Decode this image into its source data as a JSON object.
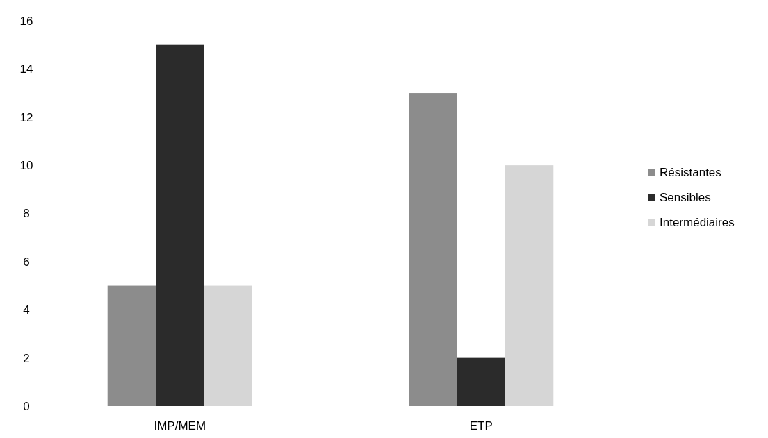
{
  "chart_data": {
    "type": "bar",
    "categories": [
      "IMP/MEM",
      "ETP"
    ],
    "series": [
      {
        "name": "Résistantes",
        "color": "#8c8c8c",
        "values": [
          5,
          13
        ]
      },
      {
        "name": "Sensibles",
        "color": "#2b2b2b",
        "values": [
          15,
          2
        ]
      },
      {
        "name": "Intermédiaires",
        "color": "#d6d6d6",
        "values": [
          5,
          10
        ]
      }
    ],
    "ylim": [
      0,
      16
    ],
    "yticks": [
      0,
      2,
      4,
      6,
      8,
      10,
      12,
      14,
      16
    ],
    "grid": false,
    "legend": "right"
  }
}
